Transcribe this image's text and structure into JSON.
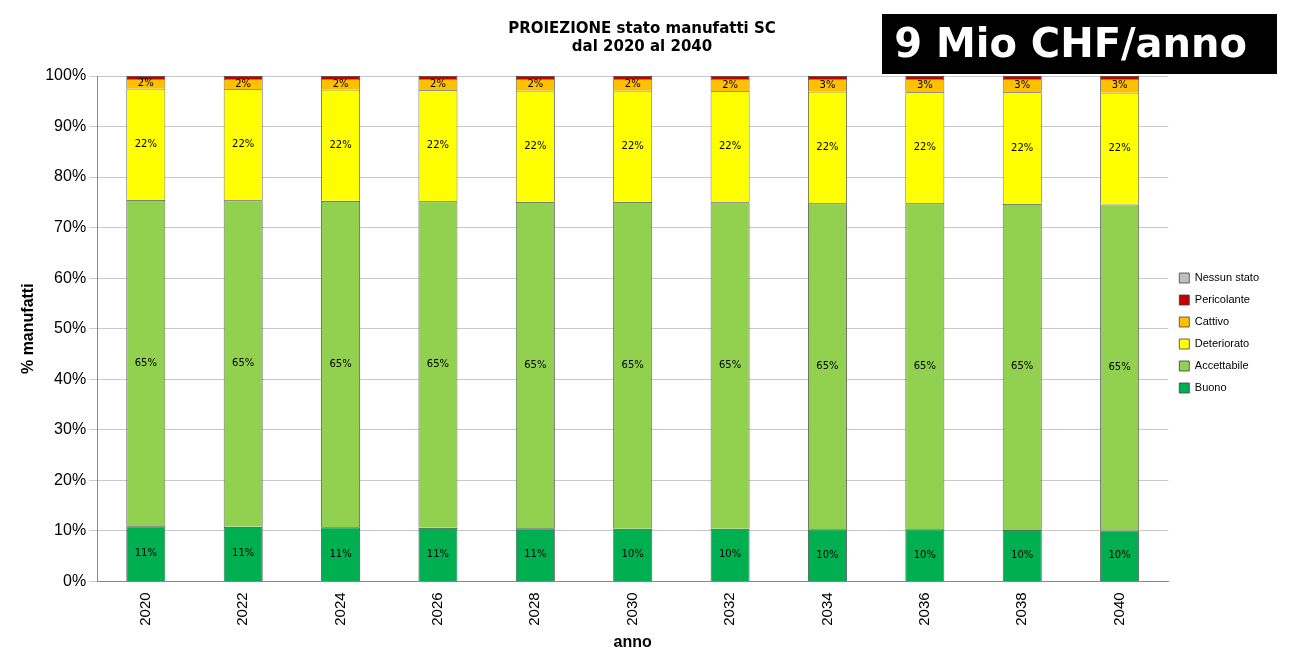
{
  "chart_data": {
    "type": "bar",
    "title": "PROIEZIONE stato manufatti SC\ndal 2020 al 2040",
    "xlabel": "anno",
    "ylabel": "% manufatti",
    "annotations": [
      "9 Mio CHF/anno"
    ],
    "categories": [
      "2020",
      "2022",
      "2024",
      "2026",
      "2028",
      "2030",
      "2032",
      "2034",
      "2036",
      "2038",
      "2040"
    ],
    "stacked": true,
    "legend": "right",
    "grid": "y",
    "ylim": [
      0,
      100
    ],
    "yticks": [
      {
        "value": 0,
        "label": "0%"
      },
      {
        "value": 10,
        "label": "10%"
      },
      {
        "value": 20,
        "label": "20%"
      },
      {
        "value": 30,
        "label": "30%"
      },
      {
        "value": 40,
        "label": "40%"
      },
      {
        "value": 50,
        "label": "50%"
      },
      {
        "value": 60,
        "label": "60%"
      },
      {
        "value": 70,
        "label": "70%"
      },
      {
        "value": 80,
        "label": "80%"
      },
      {
        "value": 90,
        "label": "90%"
      },
      {
        "value": 100,
        "label": "100%"
      }
    ],
    "series": [
      {
        "name": "Buono",
        "color": "#00b050",
        "values": [
          10.9,
          10.8,
          10.7,
          10.6,
          10.5,
          10.4,
          10.4,
          10.3,
          10.3,
          10.2,
          10.1
        ],
        "value_labels": [
          "11%",
          "11%",
          "11%",
          "11%",
          "11%",
          "10%",
          "10%",
          "10%",
          "10%",
          "10%",
          "10%"
        ]
      },
      {
        "name": "Accettabile",
        "color": "#92d050",
        "values": [
          64.6,
          64.6,
          64.6,
          64.6,
          64.6,
          64.7,
          64.6,
          64.5,
          64.5,
          64.5,
          64.5
        ],
        "value_labels": [
          "65%",
          "65%",
          "65%",
          "65%",
          "65%",
          "65%",
          "65%",
          "65%",
          "65%",
          "65%",
          "65%"
        ]
      },
      {
        "name": "Deteriorato",
        "color": "#ffff00",
        "values": [
          22.0,
          22.0,
          22.0,
          22.0,
          22.0,
          22.0,
          22.0,
          22.1,
          22.0,
          22.1,
          22.1
        ],
        "value_labels": [
          "22%",
          "22%",
          "22%",
          "22%",
          "22%",
          "22%",
          "22%",
          "22%",
          "22%",
          "22%",
          "22%"
        ]
      },
      {
        "name": "Cattivo",
        "color": "#ffc000",
        "values": [
          1.9,
          2.0,
          2.1,
          2.2,
          2.3,
          2.3,
          2.4,
          2.5,
          2.6,
          2.6,
          2.7
        ],
        "value_labels": [
          "2%",
          "2%",
          "2%",
          "2%",
          "2%",
          "2%",
          "2%",
          "3%",
          "3%",
          "3%",
          "3%"
        ]
      },
      {
        "name": "Pericolante",
        "color": "#c00000",
        "values": [
          0.6,
          0.6,
          0.6,
          0.6,
          0.6,
          0.6,
          0.6,
          0.6,
          0.6,
          0.6,
          0.6
        ]
      },
      {
        "name": "Nessun stato",
        "color": "#bfbfbf",
        "values": [
          0,
          0,
          0,
          0,
          0,
          0,
          0,
          0,
          0,
          0,
          0
        ]
      }
    ]
  }
}
